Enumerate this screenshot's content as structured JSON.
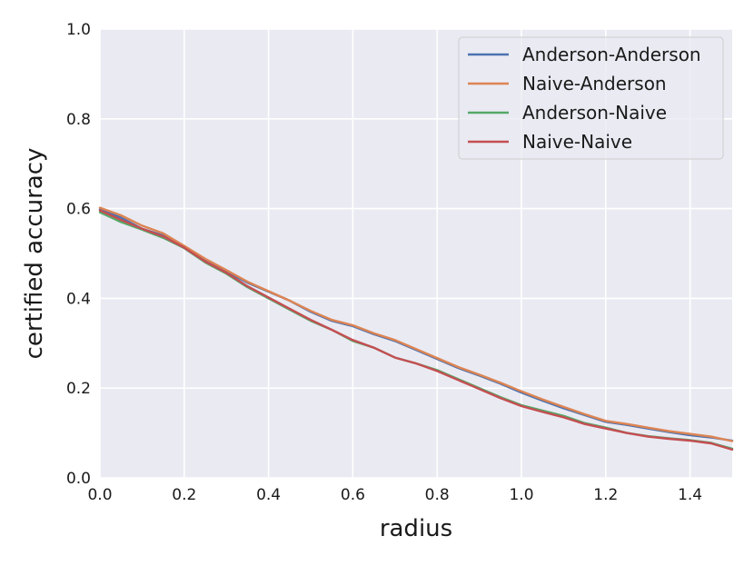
{
  "chart_data": {
    "type": "line",
    "title": "",
    "xlabel": "radius",
    "ylabel": "certified accuracy",
    "xlim": [
      0.0,
      1.5
    ],
    "ylim": [
      0.0,
      1.0
    ],
    "xticks": [
      0.0,
      0.2,
      0.4,
      0.6,
      0.8,
      1.0,
      1.2,
      1.4
    ],
    "yticks": [
      0.0,
      0.2,
      0.4,
      0.6,
      0.8,
      1.0
    ],
    "xtick_labels": [
      "0.0",
      "0.2",
      "0.4",
      "0.6",
      "0.8",
      "1.0",
      "1.2",
      "1.4"
    ],
    "ytick_labels": [
      "0.0",
      "0.2",
      "0.4",
      "0.6",
      "0.8",
      "1.0"
    ],
    "grid": true,
    "background": "#eaeaf2",
    "legend_position": "top-right",
    "series": [
      {
        "name": "Anderson-Anderson",
        "color": "#4c72b0",
        "x": [
          0.0,
          0.05,
          0.1,
          0.15,
          0.2,
          0.25,
          0.3,
          0.35,
          0.4,
          0.45,
          0.5,
          0.55,
          0.6,
          0.65,
          0.7,
          0.75,
          0.8,
          0.85,
          0.9,
          0.95,
          1.0,
          1.05,
          1.1,
          1.15,
          1.2,
          1.25,
          1.3,
          1.35,
          1.4,
          1.45,
          1.5
        ],
        "y": [
          0.598,
          0.58,
          0.555,
          0.54,
          0.515,
          0.485,
          0.46,
          0.435,
          0.415,
          0.395,
          0.37,
          0.35,
          0.338,
          0.32,
          0.305,
          0.285,
          0.265,
          0.245,
          0.228,
          0.21,
          0.19,
          0.172,
          0.155,
          0.14,
          0.125,
          0.118,
          0.11,
          0.102,
          0.095,
          0.09,
          0.083
        ]
      },
      {
        "name": "Naive-Anderson",
        "color": "#dd8452",
        "x": [
          0.0,
          0.05,
          0.1,
          0.15,
          0.2,
          0.25,
          0.3,
          0.35,
          0.4,
          0.45,
          0.5,
          0.55,
          0.6,
          0.65,
          0.7,
          0.75,
          0.8,
          0.85,
          0.9,
          0.95,
          1.0,
          1.05,
          1.1,
          1.15,
          1.2,
          1.25,
          1.3,
          1.35,
          1.4,
          1.45,
          1.5
        ],
        "y": [
          0.602,
          0.585,
          0.562,
          0.545,
          0.517,
          0.488,
          0.463,
          0.437,
          0.416,
          0.395,
          0.372,
          0.352,
          0.34,
          0.322,
          0.307,
          0.287,
          0.267,
          0.247,
          0.23,
          0.212,
          0.193,
          0.175,
          0.158,
          0.142,
          0.127,
          0.12,
          0.112,
          0.104,
          0.098,
          0.092,
          0.082
        ]
      },
      {
        "name": "Anderson-Naive",
        "color": "#55a868",
        "x": [
          0.0,
          0.05,
          0.1,
          0.15,
          0.2,
          0.25,
          0.3,
          0.35,
          0.4,
          0.45,
          0.5,
          0.55,
          0.6,
          0.65,
          0.7,
          0.75,
          0.8,
          0.85,
          0.9,
          0.95,
          1.0,
          1.05,
          1.1,
          1.15,
          1.2,
          1.25,
          1.3,
          1.35,
          1.4,
          1.45,
          1.5
        ],
        "y": [
          0.592,
          0.57,
          0.553,
          0.535,
          0.512,
          0.48,
          0.455,
          0.425,
          0.4,
          0.375,
          0.35,
          0.33,
          0.305,
          0.29,
          0.268,
          0.255,
          0.24,
          0.22,
          0.2,
          0.18,
          0.162,
          0.15,
          0.138,
          0.122,
          0.112,
          0.1,
          0.093,
          0.088,
          0.084,
          0.078,
          0.065
        ]
      },
      {
        "name": "Naive-Naive",
        "color": "#c44e52",
        "x": [
          0.0,
          0.05,
          0.1,
          0.15,
          0.2,
          0.25,
          0.3,
          0.35,
          0.4,
          0.45,
          0.5,
          0.55,
          0.6,
          0.65,
          0.7,
          0.75,
          0.8,
          0.85,
          0.9,
          0.95,
          1.0,
          1.05,
          1.1,
          1.15,
          1.2,
          1.25,
          1.3,
          1.35,
          1.4,
          1.45,
          1.5
        ],
        "y": [
          0.596,
          0.575,
          0.555,
          0.538,
          0.513,
          0.482,
          0.457,
          0.427,
          0.402,
          0.377,
          0.352,
          0.33,
          0.307,
          0.29,
          0.268,
          0.255,
          0.238,
          0.218,
          0.198,
          0.178,
          0.16,
          0.147,
          0.135,
          0.12,
          0.11,
          0.1,
          0.092,
          0.087,
          0.083,
          0.077,
          0.063
        ]
      }
    ]
  }
}
